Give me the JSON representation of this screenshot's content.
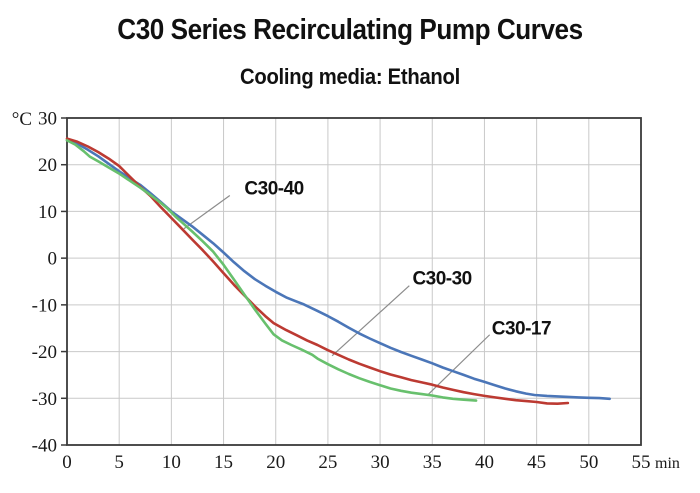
{
  "page": {
    "title": "C30 Series Recirculating Pump Curves",
    "subtitle": "Cooling media: Ethanol"
  },
  "colors": {
    "c30_40_blue": "#4b76b8",
    "c30_30_red": "#bc3a32",
    "c30_17_green": "#68c06d",
    "grid": "#c9c9c9",
    "axis": "#3a3a3a",
    "leader": "#8c8c8c",
    "text": "#1a1a1a"
  },
  "chart_data": {
    "type": "line",
    "title": "C30 Series Recirculating Pump Curves",
    "subtitle": "Cooling media: Ethanol",
    "xlabel": "min",
    "ylabel": "°C",
    "xlim": [
      0,
      55
    ],
    "ylim": [
      -40,
      30
    ],
    "x_ticks": [
      0,
      5,
      10,
      15,
      20,
      25,
      30,
      35,
      40,
      45,
      50,
      55
    ],
    "y_ticks": [
      30,
      20,
      10,
      0,
      -10,
      -20,
      -30,
      -40
    ],
    "grid": true,
    "legend_position": "inline-annotations",
    "series": [
      {
        "name": "C30-40",
        "color": "#4b76b8",
        "points": [
          [
            0,
            25.3
          ],
          [
            1,
            24.5
          ],
          [
            2,
            23.2
          ],
          [
            3,
            21.8
          ],
          [
            4,
            20.2
          ],
          [
            5,
            18.6
          ],
          [
            6,
            17.1
          ],
          [
            7,
            15.7
          ],
          [
            8,
            13.9
          ],
          [
            9,
            12.0
          ],
          [
            10,
            10.0
          ],
          [
            11,
            8.4
          ],
          [
            12,
            6.8
          ],
          [
            13,
            5.0
          ],
          [
            14,
            3.2
          ],
          [
            15,
            1.2
          ],
          [
            16,
            -0.9
          ],
          [
            17,
            -2.8
          ],
          [
            18,
            -4.5
          ],
          [
            19,
            -5.9
          ],
          [
            20,
            -7.2
          ],
          [
            21,
            -8.4
          ],
          [
            22,
            -9.3
          ],
          [
            22.7,
            -9.9
          ],
          [
            24,
            -11.3
          ],
          [
            25,
            -12.4
          ],
          [
            26,
            -13.6
          ],
          [
            27,
            -14.9
          ],
          [
            28,
            -16.1
          ],
          [
            29,
            -17.2
          ],
          [
            30,
            -18.2
          ],
          [
            31,
            -19.2
          ],
          [
            32,
            -20.1
          ],
          [
            33,
            -20.9
          ],
          [
            34,
            -21.7
          ],
          [
            35,
            -22.5
          ],
          [
            36,
            -23.4
          ],
          [
            37,
            -24.2
          ],
          [
            38,
            -25.0
          ],
          [
            39,
            -25.8
          ],
          [
            40,
            -26.5
          ],
          [
            41,
            -27.2
          ],
          [
            42,
            -27.9
          ],
          [
            43,
            -28.5
          ],
          [
            44,
            -29.0
          ],
          [
            44.8,
            -29.3
          ],
          [
            46,
            -29.5
          ],
          [
            47,
            -29.6
          ],
          [
            48,
            -29.7
          ],
          [
            49,
            -29.8
          ],
          [
            50,
            -29.9
          ],
          [
            51,
            -29.95
          ],
          [
            52,
            -30.1
          ]
        ]
      },
      {
        "name": "C30-30",
        "color": "#bc3a32",
        "points": [
          [
            0,
            25.6
          ],
          [
            1,
            24.9
          ],
          [
            2,
            23.9
          ],
          [
            3,
            22.7
          ],
          [
            4,
            21.3
          ],
          [
            5,
            19.7
          ],
          [
            6,
            17.5
          ],
          [
            7,
            15.3
          ],
          [
            8,
            13.3
          ],
          [
            9,
            10.9
          ],
          [
            10,
            8.6
          ],
          [
            11,
            6.3
          ],
          [
            12,
            4.0
          ],
          [
            13,
            1.7
          ],
          [
            14,
            -0.7
          ],
          [
            15,
            -3.2
          ],
          [
            16,
            -5.7
          ],
          [
            17,
            -8.0
          ],
          [
            18,
            -10.3
          ],
          [
            19,
            -12.4
          ],
          [
            19.8,
            -13.9
          ],
          [
            21,
            -15.4
          ],
          [
            22,
            -16.5
          ],
          [
            23,
            -17.6
          ],
          [
            24,
            -18.6
          ],
          [
            25,
            -19.7
          ],
          [
            26,
            -20.7
          ],
          [
            27,
            -21.7
          ],
          [
            28,
            -22.6
          ],
          [
            29,
            -23.4
          ],
          [
            30,
            -24.2
          ],
          [
            31,
            -24.9
          ],
          [
            32,
            -25.5
          ],
          [
            33,
            -26.1
          ],
          [
            34,
            -26.6
          ],
          [
            35,
            -27.1
          ],
          [
            36,
            -27.7
          ],
          [
            37,
            -28.2
          ],
          [
            38,
            -28.7
          ],
          [
            39,
            -29.1
          ],
          [
            40,
            -29.5
          ],
          [
            41,
            -29.8
          ],
          [
            42,
            -30.1
          ],
          [
            43,
            -30.4
          ],
          [
            44,
            -30.6
          ],
          [
            45,
            -30.8
          ],
          [
            46,
            -31.1
          ],
          [
            47,
            -31.15
          ],
          [
            48,
            -31.0
          ]
        ]
      },
      {
        "name": "C30-17",
        "color": "#68c06d",
        "points": [
          [
            0,
            25.2
          ],
          [
            0.8,
            24.3
          ],
          [
            1.6,
            22.9
          ],
          [
            2.2,
            21.7
          ],
          [
            3,
            20.7
          ],
          [
            4,
            19.4
          ],
          [
            5,
            18.1
          ],
          [
            6,
            16.6
          ],
          [
            7,
            15.1
          ],
          [
            8,
            13.5
          ],
          [
            9,
            11.8
          ],
          [
            9.6,
            10.7
          ],
          [
            10.4,
            8.9
          ],
          [
            11,
            7.7
          ],
          [
            12,
            5.7
          ],
          [
            13,
            3.6
          ],
          [
            14,
            1.4
          ],
          [
            15,
            -1.4
          ],
          [
            16,
            -4.6
          ],
          [
            17,
            -7.8
          ],
          [
            18,
            -11.0
          ],
          [
            19,
            -14.0
          ],
          [
            19.8,
            -16.3
          ],
          [
            20.6,
            -17.6
          ],
          [
            21.5,
            -18.6
          ],
          [
            22.5,
            -19.6
          ],
          [
            23.5,
            -20.7
          ],
          [
            24,
            -21.5
          ],
          [
            25,
            -22.7
          ],
          [
            26,
            -23.8
          ],
          [
            27,
            -24.8
          ],
          [
            28,
            -25.7
          ],
          [
            29,
            -26.5
          ],
          [
            30,
            -27.2
          ],
          [
            31,
            -27.9
          ],
          [
            32,
            -28.4
          ],
          [
            33,
            -28.8
          ],
          [
            34,
            -29.1
          ],
          [
            35,
            -29.4
          ],
          [
            36,
            -29.8
          ],
          [
            37,
            -30.1
          ],
          [
            38,
            -30.3
          ],
          [
            39.2,
            -30.5
          ]
        ]
      }
    ],
    "annotations": [
      {
        "series": "C30-40",
        "text": "C30-40",
        "text_at": [
          17.0,
          13.6
        ],
        "leader": [
          [
            15.6,
            13.4
          ],
          [
            11.2,
            6.3
          ]
        ]
      },
      {
        "series": "C30-30",
        "text": "C30-30",
        "text_at": [
          33.1,
          -5.6
        ],
        "leader": [
          [
            32.8,
            -5.9
          ],
          [
            25.4,
            -20.9
          ]
        ]
      },
      {
        "series": "C30-17",
        "text": "C30-17",
        "text_at": [
          40.7,
          -16.3
        ],
        "leader": [
          [
            40.5,
            -16.4
          ],
          [
            34.6,
            -29.2
          ]
        ]
      }
    ]
  }
}
